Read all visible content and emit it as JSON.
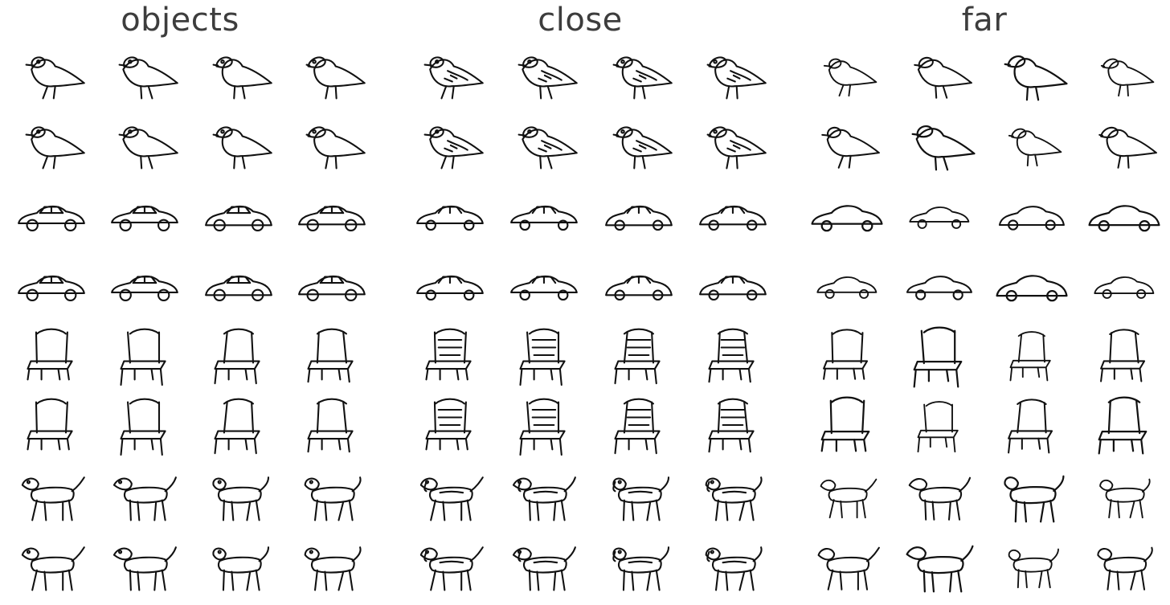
{
  "columns": [
    {
      "title": "objects",
      "style": "photo"
    },
    {
      "title": "close",
      "style": "detailed-sketch"
    },
    {
      "title": "far",
      "style": "simple-sketch"
    }
  ],
  "rows": [
    {
      "category": "bird",
      "colors": [
        "#8a5a3a",
        "#222222",
        "#9a9aa0",
        "#3b4a3a"
      ]
    },
    {
      "category": "bird",
      "colors": [
        "#4a7fb5",
        "#c9c46a",
        "#d0c040",
        "#6a2a20"
      ]
    },
    {
      "category": "car",
      "colors": [
        "#c41a1a",
        "#e6d9a0",
        "#bcd8e8",
        "#5a2a1a"
      ]
    },
    {
      "category": "car",
      "colors": [
        "#e8e8e8",
        "#e8d2b8",
        "#c8c8cc",
        "#2c3a5a"
      ]
    },
    {
      "category": "chair",
      "colors": [
        "#3a1a12",
        "#5a1a10",
        "#2a2a2a",
        "#3a3a3a"
      ]
    },
    {
      "category": "chair",
      "colors": [
        "#3a1410",
        "#b08850",
        "#7a1e10",
        "#cfcfcf"
      ]
    },
    {
      "category": "dog",
      "colors": [
        "#8a6a3a",
        "#8a8a8a",
        "#1a1a1a",
        "#d09a50"
      ]
    },
    {
      "category": "dog",
      "colors": [
        "#4a3a2a",
        "#d8c8a8",
        "#e0cfb0",
        "#5a3020"
      ]
    }
  ]
}
